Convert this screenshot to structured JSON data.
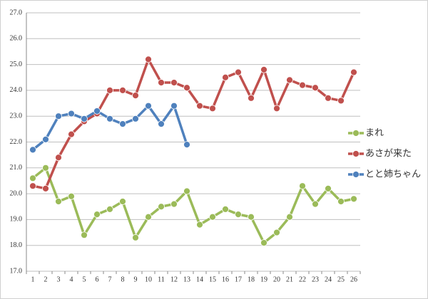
{
  "chart_data": {
    "type": "line",
    "categories": [
      "1",
      "2",
      "3",
      "4",
      "5",
      "6",
      "7",
      "8",
      "9",
      "10",
      "11",
      "12",
      "13",
      "14",
      "15",
      "16",
      "17",
      "18",
      "19",
      "20",
      "21",
      "22",
      "23",
      "24",
      "25",
      "26"
    ],
    "series": [
      {
        "name": "まれ",
        "color": "#9bbb59",
        "values": [
          20.6,
          21.0,
          19.7,
          19.9,
          18.4,
          19.2,
          19.4,
          19.7,
          18.3,
          19.1,
          19.5,
          19.6,
          20.1,
          18.8,
          19.1,
          19.4,
          19.2,
          19.1,
          18.1,
          18.5,
          19.1,
          20.3,
          19.6,
          20.2,
          19.7,
          19.8
        ]
      },
      {
        "name": "あさが来た",
        "color": "#c0504d",
        "values": [
          20.3,
          20.2,
          21.4,
          22.3,
          22.8,
          23.1,
          24.0,
          24.0,
          23.8,
          25.2,
          24.3,
          24.3,
          24.1,
          23.4,
          23.3,
          24.5,
          24.7,
          23.7,
          24.8,
          23.3,
          24.4,
          24.2,
          24.1,
          23.7,
          23.6,
          24.7
        ]
      },
      {
        "name": "とと姉ちゃん",
        "color": "#4f81bd",
        "values": [
          21.7,
          22.1,
          23.0,
          23.1,
          22.9,
          23.2,
          22.9,
          22.7,
          22.9,
          23.4,
          22.7,
          23.4,
          21.9,
          null,
          null,
          null,
          null,
          null,
          null,
          null,
          null,
          null,
          null,
          null,
          null,
          null
        ]
      }
    ],
    "ylim": [
      17,
      27
    ],
    "yticks": [
      {
        "value": 17,
        "label": "17.0"
      },
      {
        "value": 18,
        "label": "18.0"
      },
      {
        "value": 19,
        "label": "19.0"
      },
      {
        "value": 20,
        "label": "20.0"
      },
      {
        "value": 21,
        "label": "21.0"
      },
      {
        "value": 22,
        "label": "22.0"
      },
      {
        "value": 23,
        "label": "23.0"
      },
      {
        "value": 24,
        "label": "24.0"
      },
      {
        "value": 25,
        "label": "25.0"
      },
      {
        "value": 26,
        "label": "26.0"
      },
      {
        "value": 27,
        "label": "27.0"
      }
    ],
    "grid": true
  }
}
